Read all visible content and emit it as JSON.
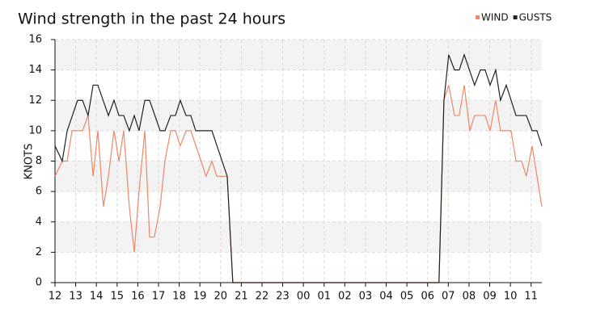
{
  "chart_data": {
    "type": "line",
    "title": "Wind strength in the past 24 hours",
    "y_label": "KNOTS",
    "xlim": [
      0,
      23.52
    ],
    "xticks": [
      {
        "value": 0,
        "label": "12"
      },
      {
        "value": 1,
        "label": "13"
      },
      {
        "value": 2,
        "label": "14"
      },
      {
        "value": 3,
        "label": "15"
      },
      {
        "value": 4,
        "label": "16"
      },
      {
        "value": 5,
        "label": "17"
      },
      {
        "value": 6,
        "label": "18"
      },
      {
        "value": 7,
        "label": "19"
      },
      {
        "value": 8,
        "label": "20"
      },
      {
        "value": 9,
        "label": "21"
      },
      {
        "value": 10,
        "label": "22"
      },
      {
        "value": 11,
        "label": "23"
      },
      {
        "value": 12,
        "label": "00"
      },
      {
        "value": 13,
        "label": "01"
      },
      {
        "value": 14,
        "label": "02"
      },
      {
        "value": 15,
        "label": "03"
      },
      {
        "value": 16,
        "label": "04"
      },
      {
        "value": 17,
        "label": "05"
      },
      {
        "value": 18,
        "label": "06"
      },
      {
        "value": 19,
        "label": "07"
      },
      {
        "value": 20,
        "label": "08"
      },
      {
        "value": 21,
        "label": "09"
      },
      {
        "value": 22,
        "label": "10"
      },
      {
        "value": 23,
        "label": "11"
      }
    ],
    "ylim": [
      0,
      16
    ],
    "yticks": [
      0,
      2,
      4,
      6,
      8,
      10,
      12,
      14,
      16
    ],
    "grid": true,
    "legend": "top-right",
    "series": [
      {
        "name": "WIND",
        "color": "#ee8866",
        "x": [
          0,
          0.35,
          0.59,
          0.82,
          1.33,
          1.6,
          1.84,
          2.07,
          2.34,
          2.58,
          2.85,
          3.09,
          3.32,
          3.59,
          3.83,
          4.06,
          4.34,
          4.57,
          4.8,
          5.08,
          5.31,
          5.59,
          5.82,
          6.05,
          6.33,
          6.56,
          7.3,
          7.58,
          7.81,
          8.32,
          8.59,
          18.55,
          18.79,
          19.02,
          19.3,
          19.53,
          19.77,
          20.04,
          20.27,
          20.78,
          21.02,
          21.29,
          21.52,
          22.03,
          22.27,
          22.54,
          22.77,
          23.05,
          23.52
        ],
        "values": [
          7,
          8,
          8,
          10,
          10,
          11,
          7,
          10,
          5,
          7,
          10,
          8,
          10,
          5,
          2,
          6,
          10,
          3,
          3,
          5,
          8,
          10,
          10,
          9,
          10,
          10,
          7,
          8,
          7,
          7,
          0,
          0,
          12,
          13,
          11,
          11,
          13,
          10,
          11,
          11,
          10,
          12,
          10,
          10,
          8,
          8,
          7,
          9,
          5
        ]
      },
      {
        "name": "GUSTS",
        "color": "#222222",
        "x": [
          0,
          0.35,
          0.59,
          1.09,
          1.33,
          1.6,
          1.84,
          2.07,
          2.58,
          2.85,
          3.09,
          3.32,
          3.59,
          3.83,
          4.06,
          4.34,
          4.57,
          5.08,
          5.31,
          5.59,
          5.82,
          6.05,
          6.33,
          6.56,
          6.8,
          7.58,
          8.32,
          8.59,
          18.55,
          18.79,
          19.02,
          19.3,
          19.53,
          19.77,
          20.27,
          20.55,
          20.78,
          21.02,
          21.29,
          21.52,
          21.8,
          22.27,
          22.77,
          23.05,
          23.28,
          23.52
        ],
        "values": [
          9,
          8,
          10,
          12,
          12,
          11,
          13,
          13,
          11,
          12,
          11,
          11,
          10,
          11,
          10,
          12,
          12,
          10,
          10,
          11,
          11,
          12,
          11,
          11,
          10,
          10,
          7,
          0,
          0,
          12,
          15,
          14,
          14,
          15,
          13,
          14,
          14,
          13,
          14,
          12,
          13,
          11,
          11,
          10,
          10,
          9
        ]
      }
    ]
  }
}
